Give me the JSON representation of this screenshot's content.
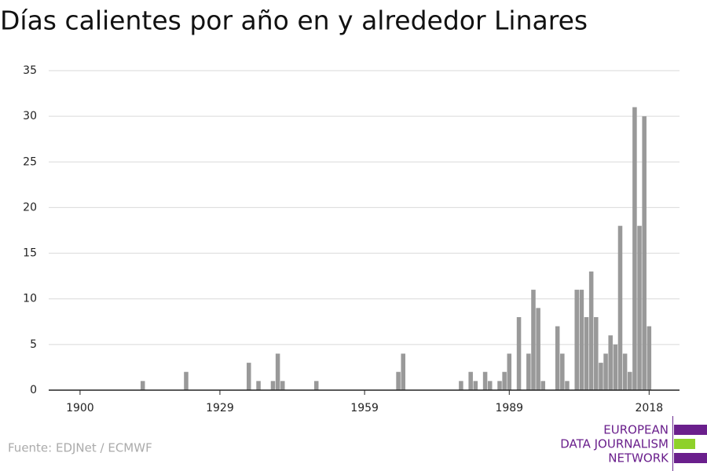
{
  "chart_data": {
    "type": "bar",
    "title": "Días calientes por año en y alrededor Linares",
    "source": "Fuente: EDJNet / ECMWF",
    "logo": [
      "EUROPEAN",
      "DATA JOURNALISM",
      "NETWORK"
    ],
    "x": [
      1913,
      1922,
      1935,
      1937,
      1940,
      1941,
      1942,
      1949,
      1966,
      1967,
      1979,
      1981,
      1982,
      1984,
      1985,
      1987,
      1988,
      1989,
      1991,
      1993,
      1994,
      1995,
      1996,
      1999,
      2000,
      2001,
      2003,
      2004,
      2005,
      2006,
      2007,
      2008,
      2009,
      2010,
      2011,
      2012,
      2013,
      2014,
      2015,
      2016,
      2017,
      2018
    ],
    "values": [
      1,
      2,
      3,
      1,
      1,
      4,
      1,
      1,
      2,
      4,
      1,
      2,
      1,
      2,
      1,
      1,
      2,
      4,
      8,
      4,
      11,
      9,
      1,
      7,
      4,
      1,
      11,
      11,
      8,
      13,
      8,
      3,
      4,
      6,
      5,
      18,
      4,
      2,
      31,
      18,
      30,
      7
    ],
    "color": "#999999",
    "xlim": [
      1893.5,
      2024.3
    ],
    "xticks": [
      1900,
      1929,
      1959,
      1989,
      2018
    ],
    "ylim": [
      0,
      35
    ],
    "yticks": [
      0,
      5,
      10,
      15,
      20,
      25,
      30,
      35
    ],
    "grid": true
  }
}
